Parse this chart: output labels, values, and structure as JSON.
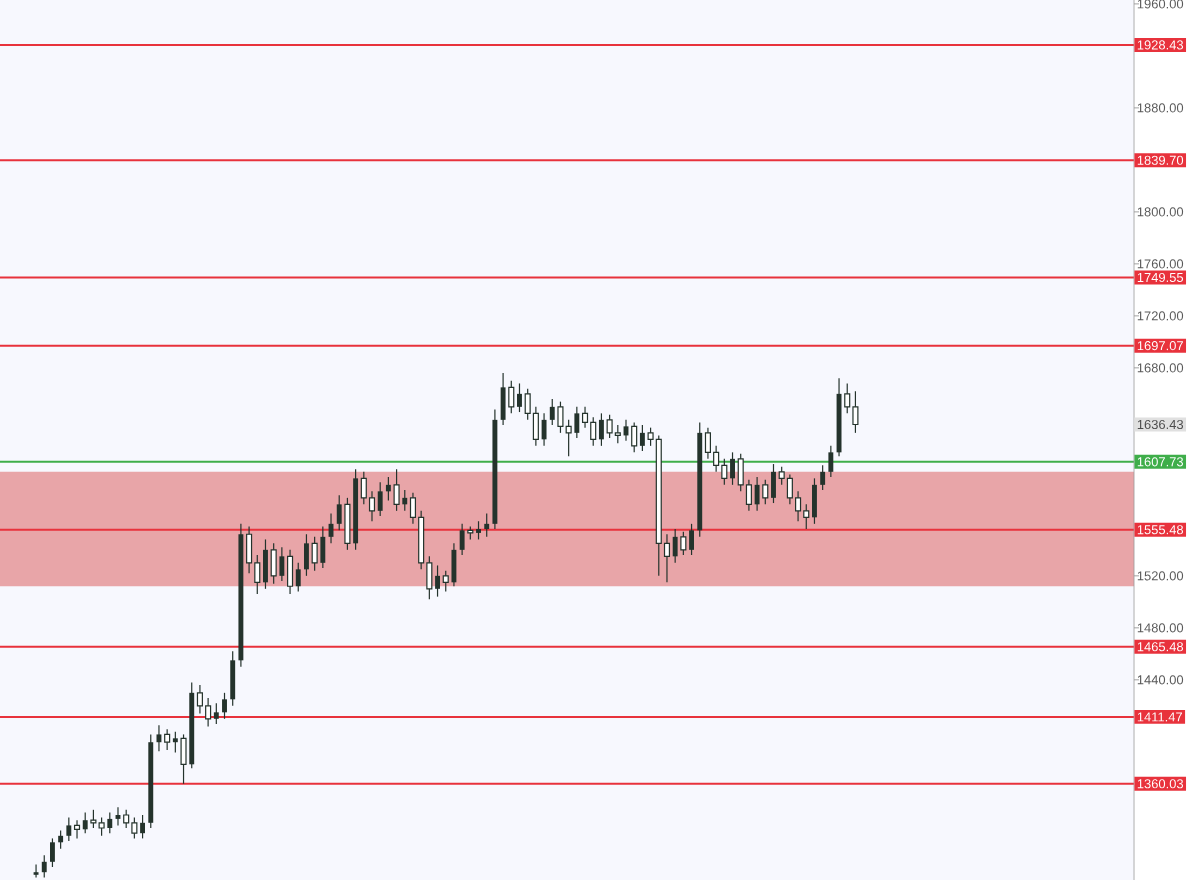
{
  "chart_data": {
    "type": "candlestick",
    "color": "#24332c",
    "categories": [
      null,
      null,
      null,
      null,
      null,
      null,
      null,
      null,
      null,
      null,
      null,
      null,
      null,
      null,
      null,
      null,
      null,
      null,
      null,
      null,
      null,
      null,
      null,
      null,
      null,
      null,
      null,
      null,
      null,
      null,
      null,
      null,
      null,
      null,
      null,
      null,
      null,
      null,
      null,
      null,
      null,
      null,
      null,
      null,
      null,
      null,
      null,
      null,
      null,
      null,
      null,
      null,
      null,
      null,
      null,
      null,
      null,
      null,
      null,
      null,
      null,
      null,
      null,
      null,
      null,
      null,
      null,
      null,
      null,
      null,
      null,
      null,
      null,
      null,
      null,
      null,
      null,
      null,
      null,
      null,
      null,
      null,
      null,
      null,
      null,
      null,
      null,
      null,
      null,
      null,
      null,
      null,
      null,
      null,
      null,
      null,
      null,
      null,
      null,
      null,
      null,
      null,
      null,
      null,
      null,
      null,
      null,
      null,
      null,
      null,
      null,
      null,
      null,
      null,
      null,
      null,
      null,
      null,
      null,
      null,
      null,
      null,
      null,
      null,
      null,
      null,
      null,
      null,
      null,
      null,
      null,
      null,
      null,
      null
    ],
    "ohlc": [
      [
        1290,
        1298,
        1288,
        1292
      ],
      [
        1292,
        1305,
        1288,
        1300
      ],
      [
        1300,
        1318,
        1296,
        1315
      ],
      [
        1315,
        1324,
        1310,
        1320
      ],
      [
        1320,
        1334,
        1316,
        1328
      ],
      [
        1328,
        1332,
        1318,
        1325
      ],
      [
        1325,
        1338,
        1322,
        1332
      ],
      [
        1332,
        1340,
        1326,
        1330
      ],
      [
        1330,
        1334,
        1320,
        1326
      ],
      [
        1326,
        1338,
        1322,
        1333
      ],
      [
        1333,
        1342,
        1328,
        1336
      ],
      [
        1336,
        1340,
        1326,
        1330
      ],
      [
        1330,
        1334,
        1318,
        1322
      ],
      [
        1322,
        1336,
        1318,
        1330
      ],
      [
        1330,
        1398,
        1326,
        1392
      ],
      [
        1392,
        1405,
        1385,
        1398
      ],
      [
        1398,
        1402,
        1386,
        1392
      ],
      [
        1392,
        1400,
        1384,
        1395
      ],
      [
        1395,
        1398,
        1360,
        1375
      ],
      [
        1375,
        1438,
        1372,
        1430
      ],
      [
        1430,
        1436,
        1414,
        1420
      ],
      [
        1420,
        1426,
        1404,
        1410
      ],
      [
        1410,
        1422,
        1406,
        1415
      ],
      [
        1415,
        1430,
        1410,
        1425
      ],
      [
        1425,
        1462,
        1420,
        1455
      ],
      [
        1455,
        1560,
        1450,
        1552
      ],
      [
        1552,
        1558,
        1522,
        1530
      ],
      [
        1530,
        1536,
        1506,
        1515
      ],
      [
        1515,
        1548,
        1510,
        1540
      ],
      [
        1540,
        1545,
        1514,
        1520
      ],
      [
        1520,
        1542,
        1516,
        1535
      ],
      [
        1535,
        1540,
        1506,
        1512
      ],
      [
        1512,
        1530,
        1508,
        1525
      ],
      [
        1525,
        1552,
        1520,
        1545
      ],
      [
        1545,
        1550,
        1524,
        1530
      ],
      [
        1530,
        1558,
        1526,
        1550
      ],
      [
        1550,
        1568,
        1545,
        1560
      ],
      [
        1560,
        1582,
        1555,
        1575
      ],
      [
        1575,
        1580,
        1540,
        1545
      ],
      [
        1545,
        1602,
        1540,
        1595
      ],
      [
        1595,
        1600,
        1575,
        1580
      ],
      [
        1580,
        1585,
        1562,
        1570
      ],
      [
        1570,
        1592,
        1566,
        1585
      ],
      [
        1585,
        1596,
        1578,
        1590
      ],
      [
        1590,
        1602,
        1570,
        1575
      ],
      [
        1575,
        1586,
        1570,
        1580
      ],
      [
        1580,
        1584,
        1560,
        1565
      ],
      [
        1565,
        1570,
        1525,
        1530
      ],
      [
        1530,
        1535,
        1502,
        1510
      ],
      [
        1510,
        1528,
        1504,
        1520
      ],
      [
        1520,
        1524,
        1508,
        1515
      ],
      [
        1515,
        1545,
        1512,
        1540
      ],
      [
        1540,
        1560,
        1536,
        1555
      ],
      [
        1555,
        1558,
        1548,
        1553
      ],
      [
        1553,
        1562,
        1548,
        1556
      ],
      [
        1556,
        1568,
        1550,
        1560
      ],
      [
        1560,
        1648,
        1556,
        1640
      ],
      [
        1640,
        1676,
        1636,
        1665
      ],
      [
        1665,
        1670,
        1645,
        1650
      ],
      [
        1650,
        1668,
        1646,
        1660
      ],
      [
        1660,
        1664,
        1640,
        1645
      ],
      [
        1645,
        1650,
        1620,
        1625
      ],
      [
        1625,
        1645,
        1620,
        1640
      ],
      [
        1640,
        1656,
        1636,
        1650
      ],
      [
        1650,
        1654,
        1630,
        1635
      ],
      [
        1635,
        1640,
        1612,
        1630
      ],
      [
        1630,
        1650,
        1626,
        1645
      ],
      [
        1645,
        1650,
        1634,
        1638
      ],
      [
        1638,
        1642,
        1620,
        1625
      ],
      [
        1625,
        1645,
        1620,
        1640
      ],
      [
        1640,
        1644,
        1626,
        1630
      ],
      [
        1630,
        1636,
        1622,
        1628
      ],
      [
        1628,
        1640,
        1624,
        1635
      ],
      [
        1635,
        1638,
        1615,
        1620
      ],
      [
        1620,
        1636,
        1616,
        1630
      ],
      [
        1630,
        1634,
        1620,
        1625
      ],
      [
        1625,
        1628,
        1520,
        1545
      ],
      [
        1545,
        1552,
        1515,
        1535
      ],
      [
        1535,
        1556,
        1530,
        1550
      ],
      [
        1550,
        1554,
        1536,
        1540
      ],
      [
        1540,
        1560,
        1536,
        1555
      ],
      [
        1555,
        1638,
        1550,
        1630
      ],
      [
        1630,
        1634,
        1610,
        1615
      ],
      [
        1615,
        1620,
        1600,
        1605
      ],
      [
        1605,
        1610,
        1590,
        1595
      ],
      [
        1595,
        1615,
        1590,
        1610
      ],
      [
        1610,
        1614,
        1585,
        1590
      ],
      [
        1590,
        1594,
        1570,
        1575
      ],
      [
        1575,
        1596,
        1570,
        1590
      ],
      [
        1590,
        1594,
        1575,
        1580
      ],
      [
        1580,
        1606,
        1576,
        1600
      ],
      [
        1600,
        1604,
        1590,
        1595
      ],
      [
        1595,
        1598,
        1575,
        1580
      ],
      [
        1580,
        1585,
        1562,
        1570
      ],
      [
        1570,
        1575,
        1556,
        1565
      ],
      [
        1565,
        1595,
        1560,
        1590
      ],
      [
        1590,
        1605,
        1586,
        1600
      ],
      [
        1600,
        1620,
        1596,
        1615
      ],
      [
        1615,
        1672,
        1612,
        1660
      ],
      [
        1660,
        1668,
        1645,
        1650
      ],
      [
        1650,
        1662,
        1630,
        1636.43
      ],
      null,
      null,
      null,
      null,
      null,
      null,
      null,
      null,
      null,
      null,
      null,
      null,
      null,
      null,
      null,
      null,
      null,
      null,
      null,
      null,
      null,
      null,
      null,
      null,
      null,
      null,
      null,
      null,
      null,
      null,
      null,
      null,
      null
    ],
    "ylim": [
      1286,
      1963
    ],
    "yticks": [
      {
        "value": 1440,
        "label": "1440.00"
      },
      {
        "value": 1480,
        "label": "1480.00"
      },
      {
        "value": 1520,
        "label": "1520.00"
      },
      {
        "value": 1680,
        "label": "1680.00"
      },
      {
        "value": 1720,
        "label": "1720.00"
      },
      {
        "value": 1760,
        "label": "1760.00"
      },
      {
        "value": 1800,
        "label": "1800.00"
      },
      {
        "value": 1880,
        "label": "1880.00"
      },
      {
        "value": 1960,
        "label": "1960.00"
      }
    ],
    "ref_lines": [
      {
        "axis": "y",
        "value": 1928.43,
        "label": "1928.43",
        "color": "#e8323c"
      },
      {
        "axis": "y",
        "value": 1839.7,
        "label": "1839.70",
        "color": "#e8323c"
      },
      {
        "axis": "y",
        "value": 1749.55,
        "label": "1749.55",
        "color": "#e8323c"
      },
      {
        "axis": "y",
        "value": 1697.07,
        "label": "1697.07",
        "color": "#e8323c"
      },
      {
        "axis": "y",
        "value": 1607.73,
        "label": "1607.73",
        "color": "#3fae4a"
      },
      {
        "axis": "y",
        "value": 1555.48,
        "label": "1555.48",
        "color": "#e8323c"
      },
      {
        "axis": "y",
        "value": 1465.48,
        "label": "1465.48",
        "color": "#e8323c"
      },
      {
        "axis": "y",
        "value": 1411.47,
        "label": "1411.47",
        "color": "#e8323c"
      },
      {
        "axis": "y",
        "value": 1360.03,
        "label": "1360.03",
        "color": "#e8323c"
      }
    ],
    "bands": [
      {
        "axis": "y",
        "from": 1512,
        "to": 1600,
        "color": "#e8a5a8"
      }
    ],
    "annotations": [
      "1636.43"
    ]
  }
}
